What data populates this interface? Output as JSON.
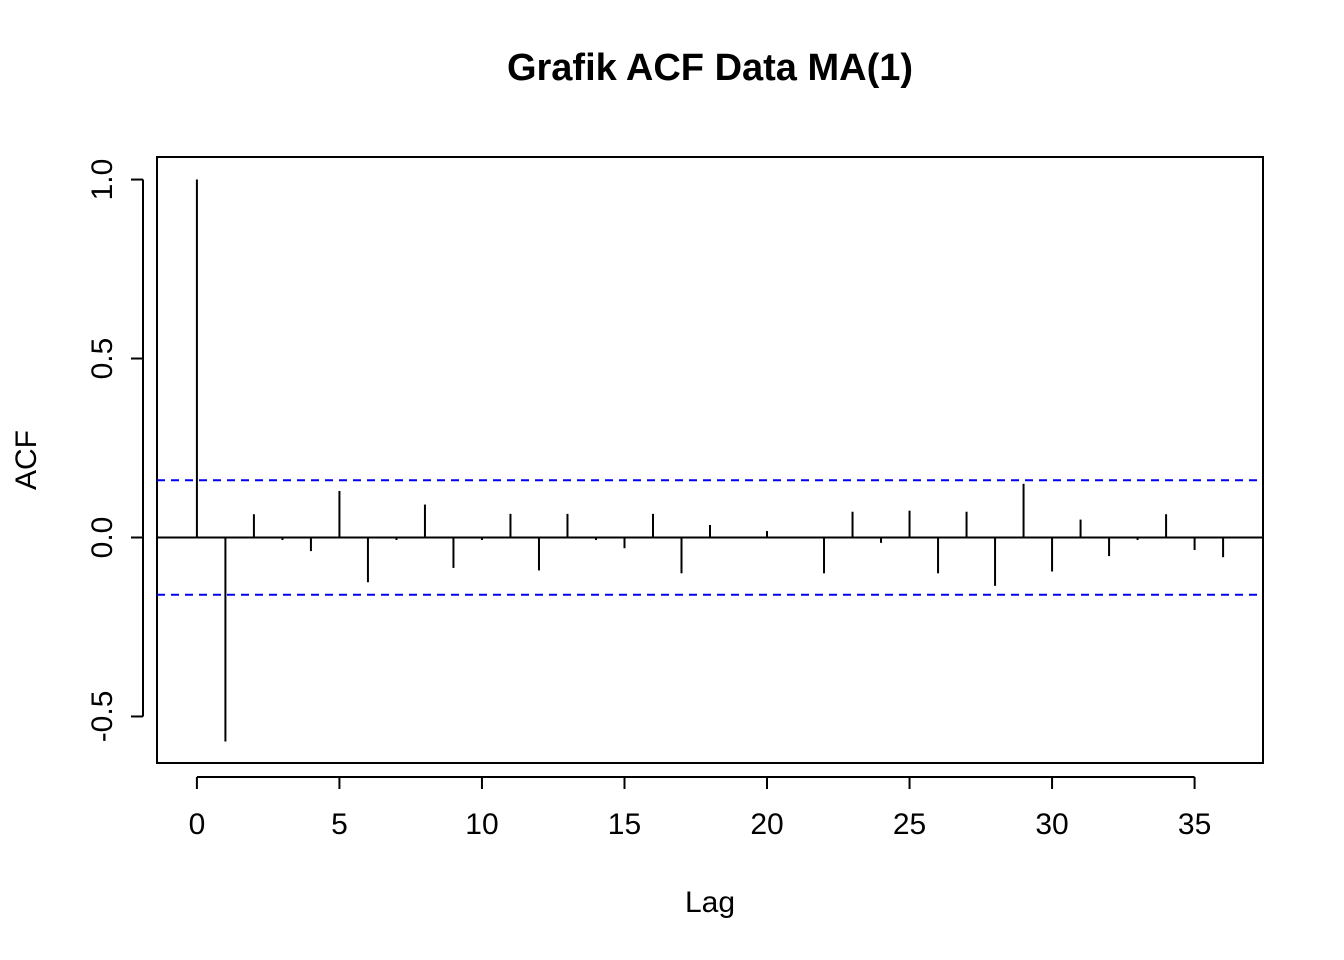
{
  "chart_data": {
    "type": "bar",
    "subtype": "acf-stem",
    "title": "Grafik ACF Data MA(1)",
    "xlabel": "Lag",
    "ylabel": "ACF",
    "xlim": [
      -1.4,
      37.4
    ],
    "ylim": [
      -0.63,
      1.063
    ],
    "x_ticks": [
      0,
      5,
      10,
      15,
      20,
      25,
      30,
      35
    ],
    "x_tick_labels": [
      "0",
      "5",
      "10",
      "15",
      "20",
      "25",
      "30",
      "35"
    ],
    "y_ticks": [
      -0.5,
      0.0,
      0.5,
      1.0
    ],
    "y_tick_labels": [
      "-0.5",
      "0.0",
      "0.5",
      "1.0"
    ],
    "grid": false,
    "legend": "none",
    "lags": [
      0,
      1,
      2,
      3,
      4,
      5,
      6,
      7,
      8,
      9,
      10,
      11,
      12,
      13,
      14,
      15,
      16,
      17,
      18,
      19,
      20,
      21,
      22,
      23,
      24,
      25,
      26,
      27,
      28,
      29,
      30,
      31,
      32,
      33,
      34,
      35,
      36
    ],
    "values": [
      1.0,
      -0.57,
      0.065,
      -0.007,
      -0.038,
      0.13,
      -0.125,
      -0.007,
      0.092,
      -0.085,
      -0.007,
      0.066,
      -0.092,
      0.066,
      -0.007,
      -0.03,
      0.066,
      -0.1,
      0.035,
      0.0,
      0.018,
      0.0,
      -0.1,
      0.072,
      -0.015,
      0.075,
      -0.1,
      0.072,
      -0.135,
      0.15,
      -0.095,
      0.05,
      -0.052,
      -0.007,
      0.065,
      -0.035,
      -0.055
    ],
    "confidence_bounds": [
      0.16,
      -0.16
    ],
    "colors": {
      "bars": "#000000",
      "zero_line": "#000000",
      "confidence": "#0000ee",
      "frame": "#000000"
    }
  }
}
